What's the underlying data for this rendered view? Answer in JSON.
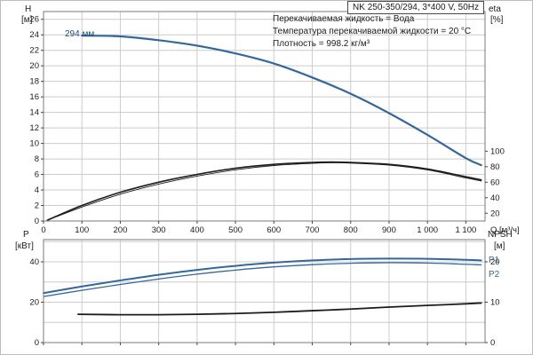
{
  "colors": {
    "blue": "#34679a",
    "black": "#1c1c1c",
    "grid": "#cccccc",
    "border": "#7a7a7a",
    "axis": "#444444"
  },
  "annotations": {
    "lines": [
      "Перекачиваемая жидкость = Вода",
      "Температура перекачиваемой жидкости = 20 °C",
      "Плотность = 998.2 кг/м³"
    ]
  },
  "axes_labels": {
    "h": "H",
    "h_unit": "[м]",
    "eta": "eta",
    "eta_unit": "[%]",
    "p": "P",
    "p_unit": "[кВт]",
    "npsh": "NPSH",
    "npsh_unit": "[м]"
  },
  "chart_data": [
    {
      "id": "head",
      "type": "line",
      "title": "NK 250-350/294, 3*400 V, 50Hz",
      "xlabel": "Q [м³/ч]",
      "ylabel_left": "H [м]",
      "ylabel_right": "eta [%]",
      "x_range": [
        0,
        1150
      ],
      "y_left_range": [
        0,
        27
      ],
      "x_ticks": [
        0,
        100,
        200,
        300,
        400,
        500,
        600,
        700,
        800,
        900,
        1000,
        1100
      ],
      "x_tick_labels": [
        "0",
        "100",
        "200",
        "300",
        "400",
        "500",
        "600",
        "700",
        "800",
        "900",
        "1 000",
        "1 100"
      ],
      "y_left_ticks": [
        0,
        2,
        4,
        6,
        8,
        10,
        12,
        14,
        16,
        18,
        20,
        22,
        24,
        26
      ],
      "y_right_ticks": [
        20,
        40,
        60,
        80,
        100
      ],
      "right_to_left": {
        "m": 0.1,
        "b": -1.0
      },
      "show_x_labels": true,
      "legend_position": "none",
      "grid": true,
      "series": [
        {
          "label": "294 мм",
          "name": "head-curve",
          "axis": "left",
          "color": "blue",
          "width": 2.2,
          "x": [
            100,
            200,
            300,
            400,
            500,
            600,
            700,
            800,
            900,
            1000,
            1100,
            1140
          ],
          "y": [
            23.9,
            23.8,
            23.3,
            22.6,
            21.6,
            20.3,
            18.5,
            16.4,
            13.9,
            11.1,
            8.1,
            7.2
          ]
        },
        {
          "label": "eta",
          "name": "eta-curve-1",
          "axis": "right",
          "color": "black",
          "width": 1.6,
          "x": [
            10,
            100,
            200,
            300,
            400,
            500,
            600,
            700,
            750,
            800,
            900,
            1000,
            1100,
            1140
          ],
          "y": [
            11,
            30,
            47,
            60,
            70,
            78,
            83,
            85.5,
            86,
            85.5,
            83,
            77,
            67,
            63
          ]
        },
        {
          "label": "eta",
          "name": "eta-curve-2",
          "axis": "right",
          "color": "black",
          "width": 0.9,
          "x": [
            10,
            100,
            200,
            300,
            400,
            500,
            600,
            700,
            750,
            800,
            900,
            1000,
            1100,
            1140
          ],
          "y": [
            11,
            28,
            44.5,
            57.5,
            67.8,
            76,
            81.5,
            84.3,
            85,
            84.6,
            82,
            75.8,
            65.5,
            61.5
          ]
        }
      ]
    },
    {
      "id": "power",
      "type": "line",
      "title": "",
      "xlabel": "",
      "ylabel_left": "P [кВт]",
      "ylabel_right": "NPSH [м]",
      "x_range": [
        0,
        1150
      ],
      "y_left_range": [
        0,
        51
      ],
      "x_ticks": [
        0,
        100,
        200,
        300,
        400,
        500,
        600,
        700,
        800,
        900,
        1000,
        1100
      ],
      "x_tick_labels": [
        "0",
        "100",
        "200",
        "300",
        "400",
        "500",
        "600",
        "700",
        "800",
        "900",
        "1 000",
        "1 100"
      ],
      "y_left_ticks": [
        0,
        20,
        40
      ],
      "y_grid": [
        10,
        20,
        30,
        40,
        50
      ],
      "y_right_ticks": [
        0,
        10,
        20
      ],
      "right_to_left": {
        "m": 2,
        "b": 0
      },
      "show_x_labels": false,
      "legend_position": "right-inline",
      "grid": true,
      "series": [
        {
          "label": "P1",
          "name": "power-curve-p1",
          "axis": "left",
          "color": "blue",
          "width": 2.0,
          "x": [
            0,
            100,
            200,
            300,
            400,
            500,
            600,
            700,
            800,
            900,
            1000,
            1100,
            1140
          ],
          "y": [
            24.5,
            27.8,
            30.8,
            33.6,
            36,
            38,
            39.6,
            40.7,
            41.4,
            41.6,
            41.5,
            41,
            40.7
          ]
        },
        {
          "label": "P2",
          "name": "power-curve-p2",
          "axis": "left",
          "color": "blue",
          "width": 1.3,
          "x": [
            0,
            100,
            200,
            300,
            400,
            500,
            600,
            700,
            800,
            900,
            1000,
            1100,
            1140
          ],
          "y": [
            22.8,
            25.9,
            28.8,
            31.5,
            33.9,
            35.9,
            37.5,
            38.6,
            39.3,
            39.6,
            39.4,
            38.8,
            38.5
          ]
        },
        {
          "label": "NPSH",
          "name": "npsh-curve",
          "axis": "right",
          "color": "black",
          "width": 1.8,
          "x": [
            90,
            200,
            300,
            400,
            500,
            600,
            700,
            800,
            900,
            1000,
            1100,
            1140
          ],
          "y": [
            7.0,
            6.9,
            6.9,
            7.0,
            7.2,
            7.5,
            7.9,
            8.3,
            8.8,
            9.2,
            9.6,
            9.8
          ]
        }
      ]
    }
  ]
}
